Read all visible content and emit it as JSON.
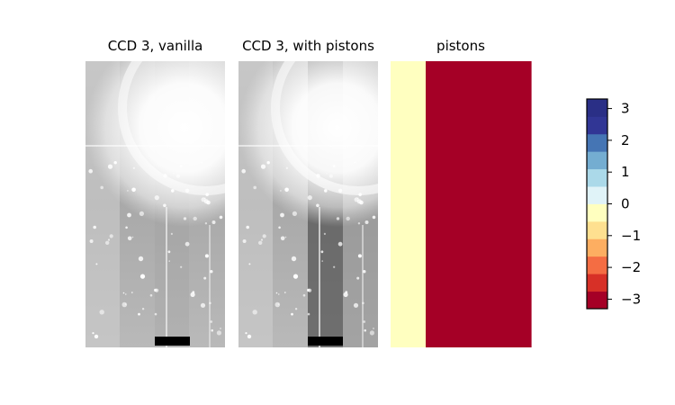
{
  "chart_data": {
    "type": "heatmap",
    "panels": [
      {
        "title": "CCD 3, vanilla",
        "content": "image",
        "pistons_applied": false
      },
      {
        "title": "CCD 3, with pistons",
        "content": "image",
        "pistons_applied": true
      },
      {
        "title": "pistons",
        "content": "piston-map",
        "column_values": [
          0,
          -3,
          -3,
          -3
        ]
      }
    ],
    "colorbar": {
      "colormap": "RdYlBu",
      "range": [
        -3.3,
        3.3
      ],
      "bins": 12,
      "ticks": [
        3,
        2,
        1,
        0,
        -1,
        -2,
        -3
      ],
      "tick_labels": [
        "3",
        "2",
        "1",
        "0",
        "−1",
        "−2",
        "−3"
      ]
    },
    "colors": {
      "rdylbu_12": [
        "#a50026",
        "#d73027",
        "#f46d43",
        "#fdae61",
        "#fee090",
        "#ffffbf",
        "#e0f3f8",
        "#abd9e9",
        "#74add1",
        "#4575b4",
        "#313695",
        "#2a2f86"
      ],
      "piston_zero": "#ffffc0",
      "piston_negative": "#a50026",
      "image_dark": "#000000"
    }
  }
}
